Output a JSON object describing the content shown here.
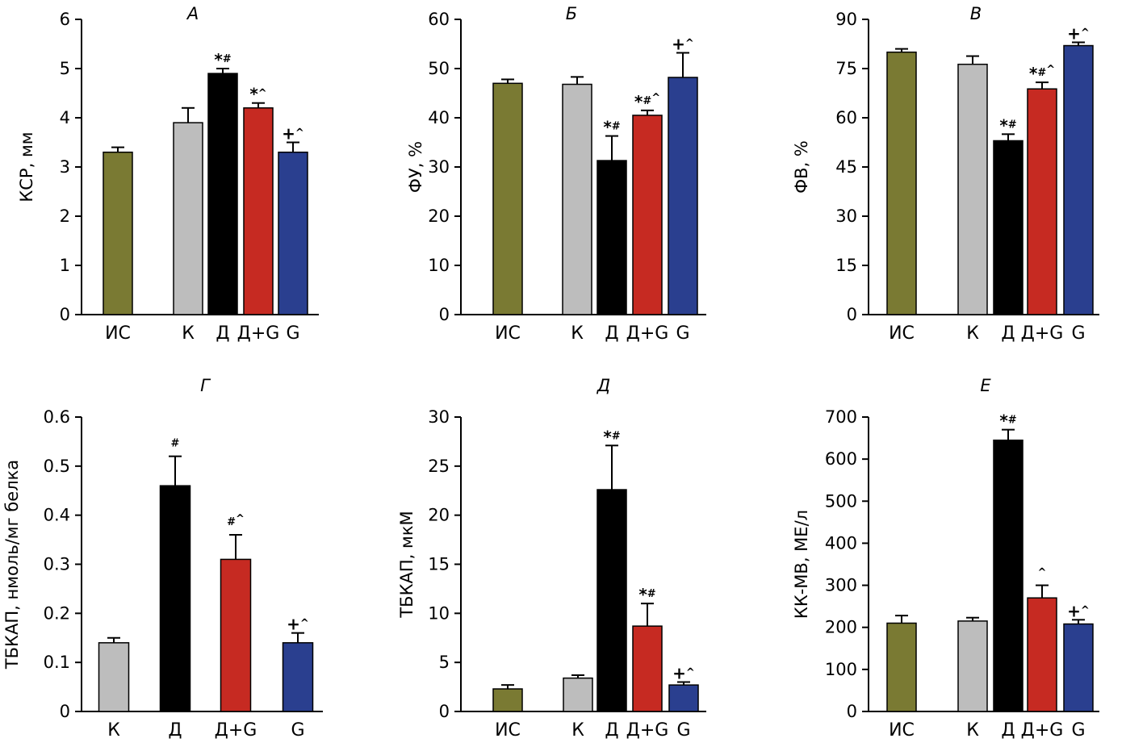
{
  "chart_data": [
    {
      "type": "bar",
      "title": "А",
      "ylabel": "КСР, мм",
      "ylim": [
        0,
        6
      ],
      "yticks": [
        0,
        1,
        2,
        3,
        4,
        5,
        6
      ],
      "bars": [
        {
          "category": "ИС",
          "value": 3.3,
          "error": 0.1,
          "color": "#7a7a33",
          "annot": []
        },
        {
          "category": "К",
          "value": 3.9,
          "error": 0.3,
          "color": "#bdbdbd",
          "annot": []
        },
        {
          "category": "Д",
          "value": 4.9,
          "error": 0.1,
          "color": "#000000",
          "annot": [
            "*",
            "#"
          ]
        },
        {
          "category": "Д+G",
          "value": 4.2,
          "error": 0.1,
          "color": "#c62a22",
          "annot": [
            "*",
            "^"
          ]
        },
        {
          "category": "G",
          "value": 3.3,
          "error": 0.2,
          "color": "#2a3f8f",
          "annot": [
            "+",
            "^"
          ]
        }
      ]
    },
    {
      "type": "bar",
      "title": "Б",
      "ylabel": "ФУ, %",
      "ylim": [
        0,
        60
      ],
      "yticks": [
        0,
        10,
        20,
        30,
        40,
        50,
        60
      ],
      "bars": [
        {
          "category": "ИС",
          "value": 47,
          "error": 0.8,
          "color": "#7a7a33",
          "annot": []
        },
        {
          "category": "К",
          "value": 46.8,
          "error": 1.5,
          "color": "#bdbdbd",
          "annot": []
        },
        {
          "category": "Д",
          "value": 31.3,
          "error": 5.0,
          "color": "#000000",
          "annot": [
            "*",
            "#"
          ]
        },
        {
          "category": "Д+G",
          "value": 40.5,
          "error": 1.0,
          "color": "#c62a22",
          "annot": [
            "*",
            "#",
            "^"
          ]
        },
        {
          "category": "G",
          "value": 48.2,
          "error": 5.0,
          "color": "#2a3f8f",
          "annot": [
            "+",
            "^"
          ]
        }
      ]
    },
    {
      "type": "bar",
      "title": "В",
      "ylabel": "ФВ, %",
      "ylim": [
        0,
        90
      ],
      "yticks": [
        0,
        15,
        30,
        45,
        60,
        75,
        90
      ],
      "bars": [
        {
          "category": "ИС",
          "value": 80,
          "error": 1.0,
          "color": "#7a7a33",
          "annot": []
        },
        {
          "category": "К",
          "value": 76.3,
          "error": 2.5,
          "color": "#bdbdbd",
          "annot": []
        },
        {
          "category": "Д",
          "value": 53,
          "error": 2.0,
          "color": "#000000",
          "annot": [
            "*",
            "#"
          ]
        },
        {
          "category": "Д+G",
          "value": 68.8,
          "error": 2.0,
          "color": "#c62a22",
          "annot": [
            "*",
            "#",
            "^"
          ]
        },
        {
          "category": "G",
          "value": 82,
          "error": 1.0,
          "color": "#2a3f8f",
          "annot": [
            "+",
            "^"
          ]
        }
      ]
    },
    {
      "type": "bar",
      "title": "Г",
      "ylabel": "ТБКАП, нмоль/мг белка",
      "ylim": [
        0,
        0.6
      ],
      "yticks": [
        "0",
        "0.1",
        "0.2",
        "0.3",
        "0.4",
        "0.5",
        "0.6"
      ],
      "bars": [
        {
          "category": "К",
          "value": 0.14,
          "error": 0.01,
          "color": "#bdbdbd",
          "annot": []
        },
        {
          "category": "Д",
          "value": 0.46,
          "error": 0.06,
          "color": "#000000",
          "annot": [
            "#"
          ]
        },
        {
          "category": "Д+G",
          "value": 0.31,
          "error": 0.05,
          "color": "#c62a22",
          "annot": [
            "#",
            "^"
          ]
        },
        {
          "category": "G",
          "value": 0.14,
          "error": 0.02,
          "color": "#2a3f8f",
          "annot": [
            "+",
            "^"
          ]
        }
      ]
    },
    {
      "type": "bar",
      "title": "Д",
      "ylabel": "ТБКАП, мкМ",
      "ylim": [
        0,
        30
      ],
      "yticks": [
        0,
        5,
        10,
        15,
        20,
        25,
        30
      ],
      "bars": [
        {
          "category": "ИС",
          "value": 2.3,
          "error": 0.4,
          "color": "#7a7a33",
          "annot": []
        },
        {
          "category": "К",
          "value": 3.4,
          "error": 0.3,
          "color": "#bdbdbd",
          "annot": []
        },
        {
          "category": "Д",
          "value": 22.6,
          "error": 4.5,
          "color": "#000000",
          "annot": [
            "*",
            "#"
          ]
        },
        {
          "category": "Д+G",
          "value": 8.7,
          "error": 2.3,
          "color": "#c62a22",
          "annot": [
            "*",
            "#"
          ]
        },
        {
          "category": "G",
          "value": 2.7,
          "error": 0.3,
          "color": "#2a3f8f",
          "annot": [
            "+",
            "^"
          ]
        }
      ]
    },
    {
      "type": "bar",
      "title": "Е",
      "ylabel": "КК-МВ, МЕ/л",
      "ylim": [
        0,
        700
      ],
      "yticks": [
        0,
        100,
        200,
        300,
        400,
        500,
        600,
        700
      ],
      "bars": [
        {
          "category": "ИС",
          "value": 210,
          "error": 18,
          "color": "#7a7a33",
          "annot": []
        },
        {
          "category": "К",
          "value": 215,
          "error": 8,
          "color": "#bdbdbd",
          "annot": []
        },
        {
          "category": "Д",
          "value": 645,
          "error": 25,
          "color": "#000000",
          "annot": [
            "*",
            "#"
          ]
        },
        {
          "category": "Д+G",
          "value": 270,
          "error": 30,
          "color": "#c62a22",
          "annot": [
            "^"
          ]
        },
        {
          "category": "G",
          "value": 208,
          "error": 10,
          "color": "#2a3f8f",
          "annot": [
            "+",
            "^"
          ]
        }
      ]
    }
  ]
}
